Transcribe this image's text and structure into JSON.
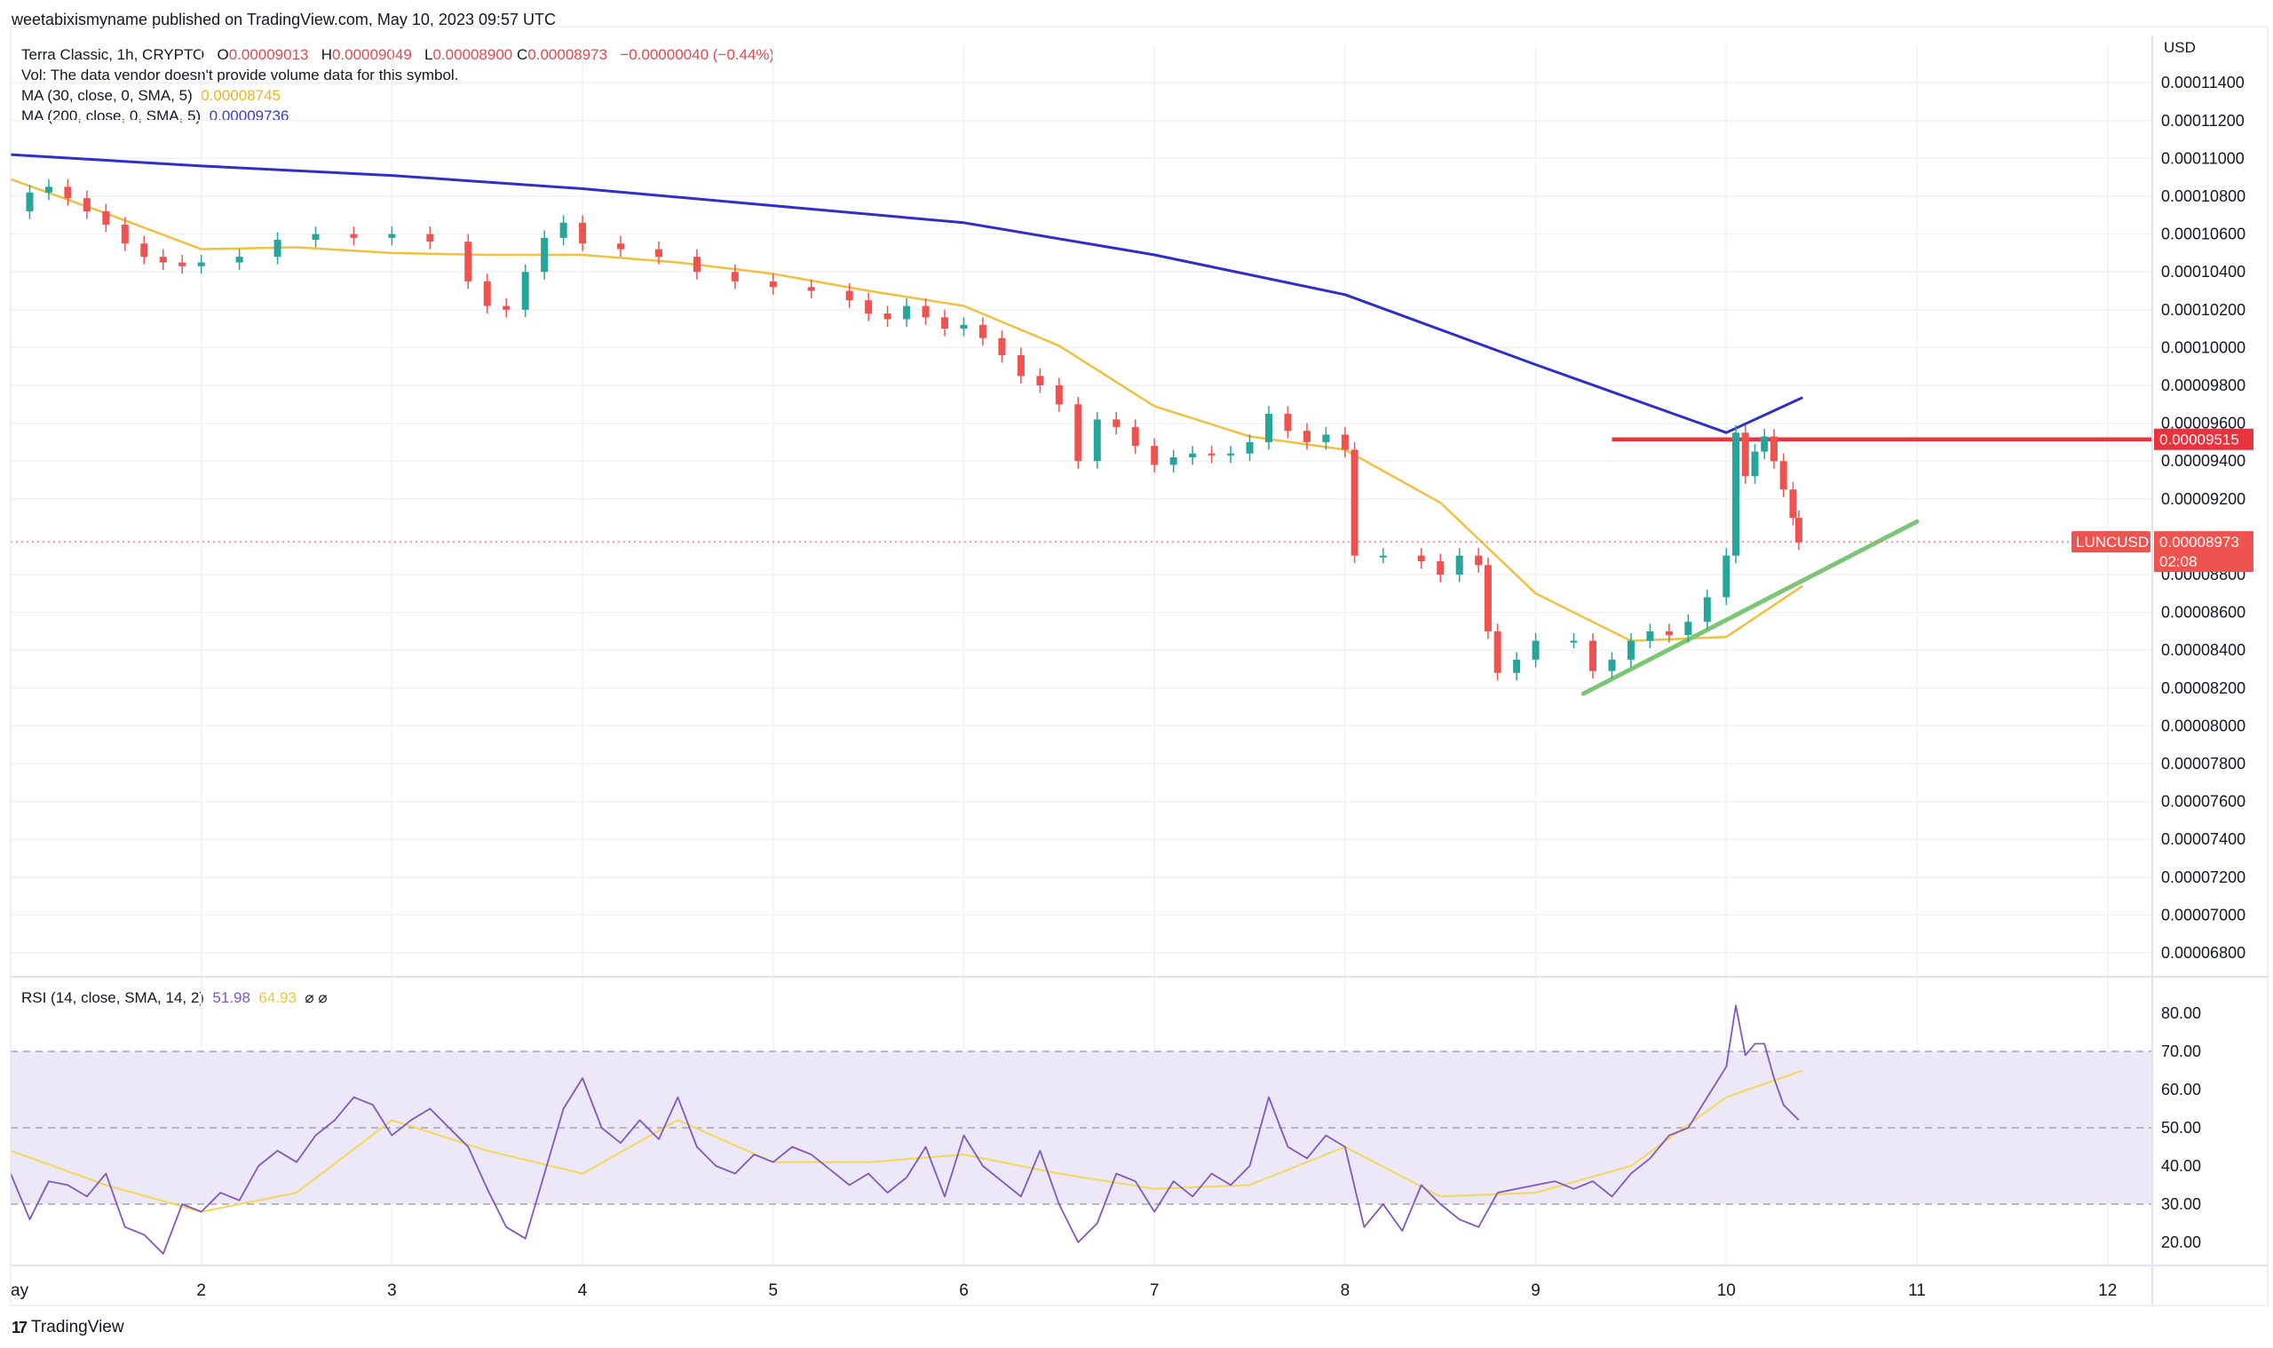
{
  "header": {
    "published": "weetabixismyname published on TradingView.com, May 10, 2023 09:57 UTC"
  },
  "legend": {
    "symbol_label": "Terra Classic, 1h, CRYPTO",
    "o_label": "O",
    "o_value": "0.00009013",
    "h_label": "H",
    "h_value": "0.00009049",
    "l_label": "L",
    "l_value": "0.00008900",
    "c_label": "C",
    "c_value": "0.00008973",
    "change": "−0.00000040 (−0.44%)",
    "vol_text": "Vol: The data vendor doesn't provide volume data for this symbol.",
    "ma30_label": "MA (30, close, 0, SMA, 5)",
    "ma30_value": "0.00008745",
    "ma200_label": "MA (200, close, 0, SMA, 5)",
    "ma200_value": "0.00009736"
  },
  "rsi_legend": {
    "label": "RSI (14, close, SMA, 14, 2)",
    "rsi_value": "51.98",
    "rsi_ma_value": "64.93",
    "icons": "⌀ ⌀"
  },
  "axis": {
    "currency": "USD"
  },
  "footer": {
    "logo_mark": "17",
    "logo_text": "TradingView"
  },
  "colors": {
    "up": "#26a69a",
    "down": "#ef5350",
    "ma30": "#f0c040",
    "ma200": "#2f2fc8",
    "resistance": "#e8333f",
    "trendline": "#7cc576",
    "rsi": "#7e57c2",
    "rsi_ma": "#f3d75a",
    "rsi_band": "#ede8f8"
  },
  "chart_data": [
    {
      "type": "candlestick",
      "title": "Terra Classic, 1h, CRYPTO",
      "symbol": "LUNCUSD",
      "x_axis": {
        "ticks": [
          "May",
          "2",
          "3",
          "4",
          "5",
          "6",
          "7",
          "8",
          "9",
          "10",
          "11",
          "12"
        ],
        "first_tick_label": "ay"
      },
      "y_axis": {
        "unit": "USD",
        "ylim": [
          6.7e-05,
          0.0001154
        ],
        "ticks": [
          "0.00011400",
          "0.00011200",
          "0.00011000",
          "0.00010800",
          "0.00010600",
          "0.00010400",
          "0.00010200",
          "0.00010000",
          "0.00009800",
          "0.00009600",
          "0.00009400",
          "0.00009200",
          "0.00008800",
          "0.00008600",
          "0.00008400",
          "0.00008200",
          "0.00008000",
          "0.00007800",
          "0.00007600",
          "0.00007400",
          "0.00007200",
          "0.00007000",
          "0.00006800"
        ]
      },
      "series_close": {
        "name": "LUNCUSD",
        "x_days": [
          1.0,
          1.1,
          1.2,
          1.3,
          1.4,
          1.5,
          1.6,
          1.7,
          1.8,
          1.9,
          2.0,
          2.2,
          2.4,
          2.6,
          2.8,
          3.0,
          3.2,
          3.4,
          3.5,
          3.6,
          3.7,
          3.8,
          3.9,
          4.0,
          4.2,
          4.4,
          4.6,
          4.8,
          5.0,
          5.2,
          5.4,
          5.5,
          5.6,
          5.7,
          5.8,
          5.9,
          6.0,
          6.1,
          6.2,
          6.3,
          6.4,
          6.5,
          6.6,
          6.7,
          6.8,
          6.9,
          7.0,
          7.1,
          7.2,
          7.3,
          7.4,
          7.5,
          7.6,
          7.7,
          7.8,
          7.9,
          8.0,
          8.05,
          8.2,
          8.4,
          8.5,
          8.6,
          8.7,
          8.75,
          8.8,
          8.9,
          9.0,
          9.2,
          9.3,
          9.4,
          9.5,
          9.6,
          9.7,
          9.8,
          9.9,
          10.0,
          10.05,
          10.1,
          10.15,
          10.2,
          10.25,
          10.3,
          10.35,
          10.38
        ],
        "values": [
          0.0001072,
          0.0001082,
          0.0001085,
          0.0001079,
          0.0001072,
          0.0001065,
          0.0001055,
          0.0001048,
          0.0001045,
          0.0001043,
          0.0001045,
          0.0001048,
          0.0001057,
          0.000106,
          0.0001058,
          0.000106,
          0.0001056,
          0.0001035,
          0.0001022,
          0.000102,
          0.000104,
          0.0001058,
          0.0001066,
          0.0001055,
          0.0001052,
          0.0001048,
          0.000104,
          0.0001035,
          0.0001032,
          0.000103,
          0.0001025,
          0.0001018,
          0.0001015,
          0.0001022,
          0.0001016,
          0.000101,
          0.0001012,
          0.0001005,
          9.96e-05,
          9.85e-05,
          9.8e-05,
          9.7e-05,
          9.4e-05,
          9.62e-05,
          9.58e-05,
          9.48e-05,
          9.38e-05,
          9.42e-05,
          9.44e-05,
          9.43e-05,
          9.44e-05,
          9.5e-05,
          9.65e-05,
          9.56e-05,
          9.5e-05,
          9.54e-05,
          9.46e-05,
          8.9e-05,
          8.9e-05,
          8.87e-05,
          8.8e-05,
          8.9e-05,
          8.85e-05,
          8.5e-05,
          8.28e-05,
          8.35e-05,
          8.45e-05,
          8.45e-05,
          8.29e-05,
          8.35e-05,
          8.45e-05,
          8.5e-05,
          8.48e-05,
          8.55e-05,
          8.68e-05,
          8.9e-05,
          9.55e-05,
          9.32e-05,
          9.45e-05,
          9.53e-05,
          9.4e-05,
          9.25e-05,
          9.1e-05,
          8.97e-05
        ]
      },
      "series_ma30": {
        "name": "MA (30, close, 0, SMA, 5)",
        "last_value": 8.745e-05,
        "x_days": [
          1.0,
          1.5,
          2.0,
          2.5,
          3.0,
          3.5,
          4.0,
          4.5,
          5.0,
          5.5,
          6.0,
          6.5,
          7.0,
          7.5,
          8.0,
          8.5,
          9.0,
          9.5,
          10.0,
          10.4
        ],
        "values": [
          0.0001089,
          0.0001071,
          0.0001052,
          0.0001053,
          0.000105,
          0.0001049,
          0.0001049,
          0.0001045,
          0.0001039,
          0.000103,
          0.0001022,
          0.0001001,
          9.69e-05,
          9.53e-05,
          9.46e-05,
          9.18e-05,
          8.7e-05,
          8.45e-05,
          8.47e-05,
          8.74e-05
        ]
      },
      "series_ma200": {
        "name": "MA (200, close, 0, SMA, 5)",
        "last_value": 9.736e-05,
        "x_days": [
          1.0,
          2.0,
          3.0,
          4.0,
          5.0,
          6.0,
          7.0,
          8.0,
          9.0,
          10.0,
          10.4
        ],
        "values": [
          0.0001102,
          0.0001096,
          0.0001091,
          0.0001084,
          0.0001075,
          0.0001066,
          0.0001049,
          0.0001028,
          9.91e-05,
          9.55e-05,
          9.736e-05
        ]
      },
      "lines": [
        {
          "name": "resistance",
          "level": 9.515e-05,
          "from_day": 9.4,
          "to_day": "right-edge",
          "label": "0.00009515"
        },
        {
          "name": "trendline",
          "from": {
            "day": 9.25,
            "value": 8.17e-05
          },
          "to": {
            "day": 11.0,
            "value": 9.08e-05
          }
        }
      ],
      "last_price": {
        "label": "LUNCUSD",
        "value": "0.00008973",
        "countdown": "02:08"
      }
    },
    {
      "type": "line",
      "title": "RSI (14, close, SMA, 14, 2)",
      "ylim": [
        12,
        86
      ],
      "y_ticks": [
        "80.00",
        "70.00",
        "60.00",
        "50.00",
        "40.00",
        "30.00",
        "20.00"
      ],
      "bands": {
        "upper": 70,
        "middle": 50,
        "lower": 30
      },
      "series_rsi": {
        "name": "RSI",
        "last_value": 51.98,
        "x_days": [
          1.0,
          1.1,
          1.2,
          1.3,
          1.4,
          1.5,
          1.6,
          1.7,
          1.8,
          1.9,
          2.0,
          2.1,
          2.2,
          2.3,
          2.4,
          2.5,
          2.6,
          2.7,
          2.8,
          2.9,
          3.0,
          3.1,
          3.2,
          3.3,
          3.4,
          3.5,
          3.6,
          3.7,
          3.8,
          3.9,
          4.0,
          4.1,
          4.2,
          4.3,
          4.4,
          4.5,
          4.6,
          4.7,
          4.8,
          4.9,
          5.0,
          5.1,
          5.2,
          5.3,
          5.4,
          5.5,
          5.6,
          5.7,
          5.8,
          5.9,
          6.0,
          6.1,
          6.2,
          6.3,
          6.4,
          6.5,
          6.6,
          6.7,
          6.8,
          6.9,
          7.0,
          7.1,
          7.2,
          7.3,
          7.4,
          7.5,
          7.6,
          7.7,
          7.8,
          7.9,
          8.0,
          8.1,
          8.2,
          8.3,
          8.4,
          8.5,
          8.6,
          8.7,
          8.8,
          8.9,
          9.0,
          9.1,
          9.2,
          9.3,
          9.4,
          9.5,
          9.6,
          9.7,
          9.8,
          9.9,
          10.0,
          10.05,
          10.1,
          10.15,
          10.2,
          10.25,
          10.3,
          10.38
        ],
        "values": [
          38,
          26,
          36,
          35,
          32,
          38,
          24,
          22,
          17,
          30,
          28,
          33,
          31,
          40,
          44,
          41,
          48,
          52,
          58,
          56,
          48,
          52,
          55,
          50,
          45,
          34,
          24,
          21,
          38,
          55,
          63,
          50,
          46,
          52,
          47,
          58,
          45,
          40,
          38,
          43,
          41,
          45,
          43,
          39,
          35,
          38,
          33,
          37,
          45,
          32,
          48,
          40,
          36,
          32,
          44,
          30,
          20,
          25,
          38,
          36,
          28,
          36,
          32,
          38,
          35,
          40,
          58,
          45,
          42,
          48,
          45,
          24,
          30,
          23,
          35,
          30,
          26,
          24,
          33,
          34,
          35,
          36,
          34,
          36,
          32,
          38,
          42,
          48,
          50,
          58,
          66,
          82,
          69,
          72,
          72,
          63,
          56,
          52
        ]
      },
      "series_rsi_ma": {
        "name": "RSI MA",
        "last_value": 64.93,
        "x_days": [
          1.0,
          1.5,
          2.0,
          2.5,
          3.0,
          3.5,
          4.0,
          4.5,
          5.0,
          5.5,
          6.0,
          6.5,
          7.0,
          7.5,
          8.0,
          8.5,
          9.0,
          9.5,
          10.0,
          10.4
        ],
        "values": [
          44,
          35,
          28,
          33,
          52,
          44,
          38,
          52,
          41,
          41,
          43,
          38,
          34,
          35,
          45,
          32,
          33,
          40,
          58,
          65
        ]
      }
    }
  ]
}
